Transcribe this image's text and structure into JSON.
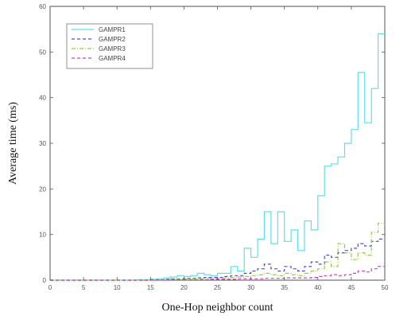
{
  "chart_data": {
    "type": "line",
    "title": "",
    "xlabel": "One-Hop neighbor count",
    "ylabel": "Average time (ms)",
    "xlim": [
      0,
      50
    ],
    "ylim": [
      0,
      60
    ],
    "xticks": [
      0,
      5,
      10,
      15,
      20,
      25,
      30,
      35,
      40,
      45,
      50
    ],
    "yticks": [
      0,
      10,
      20,
      30,
      40,
      50,
      60
    ],
    "grid": false,
    "legend_position": "top-left",
    "series": [
      {
        "name": "GAMPR1",
        "color": "#5fe0e6",
        "style": "solid",
        "x": [
          0,
          1,
          2,
          3,
          4,
          5,
          6,
          7,
          8,
          9,
          10,
          11,
          12,
          13,
          14,
          15,
          16,
          17,
          18,
          19,
          20,
          21,
          22,
          23,
          24,
          25,
          26,
          27,
          28,
          29,
          30,
          31,
          32,
          33,
          34,
          35,
          36,
          37,
          38,
          39,
          40,
          41,
          42,
          43,
          44,
          45,
          46,
          47,
          48,
          49
        ],
        "y": [
          0,
          0,
          0,
          0,
          0,
          0,
          0,
          0,
          0,
          0,
          0,
          0,
          0,
          0.1,
          0.1,
          0.2,
          0.3,
          0.5,
          0.7,
          1.0,
          0.8,
          1.0,
          1.5,
          1.2,
          1.0,
          1.5,
          1.5,
          3.0,
          2.0,
          7.0,
          5.0,
          9.0,
          15.0,
          8.0,
          15.0,
          8.5,
          11.0,
          6.5,
          13.0,
          11.0,
          18.5,
          25.0,
          25.5,
          27.0,
          30.0,
          33.0,
          45.5,
          34.5,
          42.0,
          54.0
        ]
      },
      {
        "name": "GAMPR2",
        "color": "#4a4fd0",
        "style": "dashed",
        "x": [
          0,
          1,
          2,
          3,
          4,
          5,
          6,
          7,
          8,
          9,
          10,
          11,
          12,
          13,
          14,
          15,
          16,
          17,
          18,
          19,
          20,
          21,
          22,
          23,
          24,
          25,
          26,
          27,
          28,
          29,
          30,
          31,
          32,
          33,
          34,
          35,
          36,
          37,
          38,
          39,
          40,
          41,
          42,
          43,
          44,
          45,
          46,
          47,
          48,
          49
        ],
        "y": [
          0,
          0,
          0,
          0,
          0,
          0,
          0,
          0,
          0,
          0,
          0,
          0,
          0,
          0,
          0,
          0.1,
          0.1,
          0.2,
          0.3,
          0.3,
          0.4,
          0.4,
          0.5,
          0.6,
          0.6,
          0.6,
          0.8,
          1.0,
          1.0,
          1.5,
          2.0,
          2.5,
          3.5,
          2.5,
          2.0,
          3.0,
          2.5,
          2.0,
          3.0,
          4.0,
          3.5,
          5.5,
          5.0,
          6.0,
          6.5,
          7.0,
          8.0,
          7.5,
          8.5,
          9.0
        ]
      },
      {
        "name": "GAMPR3",
        "color": "#9ccc3c",
        "style": "dash-dot",
        "x": [
          0,
          1,
          2,
          3,
          4,
          5,
          6,
          7,
          8,
          9,
          10,
          11,
          12,
          13,
          14,
          15,
          16,
          17,
          18,
          19,
          20,
          21,
          22,
          23,
          24,
          25,
          26,
          27,
          28,
          29,
          30,
          31,
          32,
          33,
          34,
          35,
          36,
          37,
          38,
          39,
          40,
          41,
          42,
          43,
          44,
          45,
          46,
          47,
          48,
          49
        ],
        "y": [
          0,
          0,
          0,
          0,
          0,
          0,
          0,
          0,
          0,
          0,
          0,
          0,
          0,
          0,
          0,
          0.1,
          0.1,
          0.1,
          0.2,
          0.2,
          0.3,
          0.3,
          0.3,
          0.4,
          0.4,
          0.4,
          0.5,
          0.6,
          0.7,
          0.8,
          1.0,
          1.2,
          1.5,
          1.2,
          1.0,
          1.5,
          1.2,
          1.0,
          1.5,
          2.0,
          2.5,
          4.0,
          3.0,
          8.0,
          6.0,
          4.5,
          6.0,
          5.5,
          10.5,
          12.5
        ]
      },
      {
        "name": "GAMPR4",
        "color": "#d040c0",
        "style": "dashed",
        "x": [
          0,
          1,
          2,
          3,
          4,
          5,
          6,
          7,
          8,
          9,
          10,
          11,
          12,
          13,
          14,
          15,
          16,
          17,
          18,
          19,
          20,
          21,
          22,
          23,
          24,
          25,
          26,
          27,
          28,
          29,
          30,
          31,
          32,
          33,
          34,
          35,
          36,
          37,
          38,
          39,
          40,
          41,
          42,
          43,
          44,
          45,
          46,
          47,
          48,
          49
        ],
        "y": [
          0,
          0,
          0,
          0,
          0,
          0,
          0,
          0,
          0,
          0,
          0,
          0,
          0,
          0,
          0,
          0,
          0,
          0,
          0.1,
          0.1,
          0.1,
          0.1,
          0.1,
          0.1,
          0.2,
          0.2,
          0.2,
          0.2,
          0.3,
          0.3,
          0.3,
          0.3,
          0.4,
          0.4,
          0.4,
          0.5,
          0.5,
          0.5,
          0.5,
          0.6,
          0.8,
          1.0,
          1.2,
          1.0,
          1.2,
          1.5,
          2.0,
          1.8,
          2.5,
          3.0
        ]
      }
    ]
  }
}
